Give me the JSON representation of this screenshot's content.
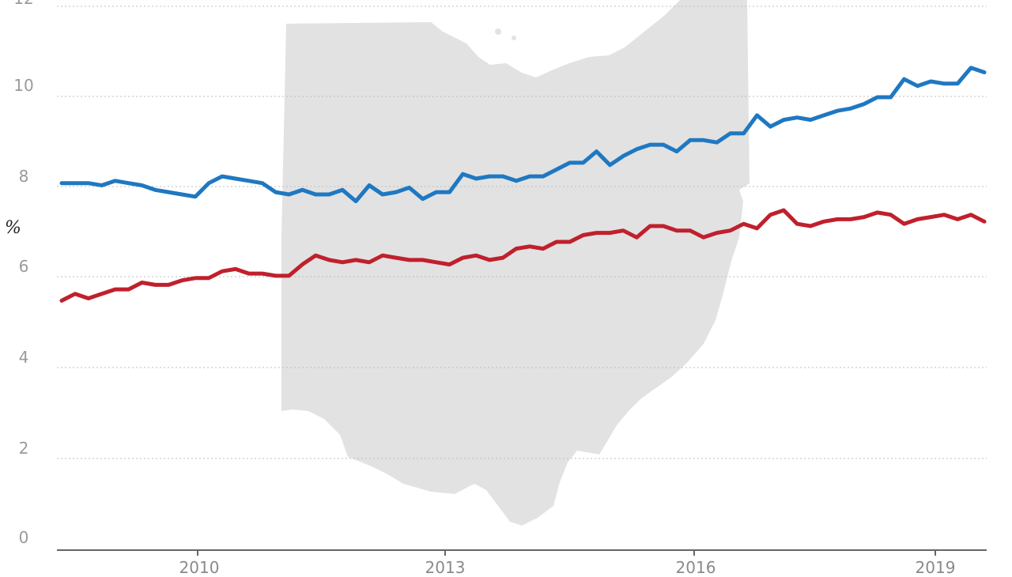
{
  "chart_data": {
    "type": "line",
    "title": "",
    "xlabel": "",
    "ylabel": "%",
    "ylim": [
      0,
      12
    ],
    "y_ticks": [
      "0",
      "2",
      "4",
      "6",
      "8",
      "10",
      "12"
    ],
    "x_tick_labels": [
      "2010",
      "2013",
      "2016",
      "2019"
    ],
    "grid": "horizontal dotted",
    "legend": "none",
    "background_shape": "Ohio state outline (light gray)",
    "series": [
      {
        "name": "blue series",
        "color": "#1f78c1",
        "values": [
          8.1,
          8.1,
          8.1,
          8.05,
          8.15,
          8.1,
          8.05,
          7.95,
          7.9,
          7.85,
          7.8,
          8.1,
          8.25,
          8.2,
          8.15,
          8.1,
          7.9,
          7.85,
          7.95,
          7.85,
          7.85,
          7.95,
          7.7,
          8.05,
          7.85,
          7.9,
          8.0,
          7.75,
          7.9,
          7.9,
          8.3,
          8.2,
          8.25,
          8.25,
          8.15,
          8.25,
          8.25,
          8.4,
          8.55,
          8.55,
          8.8,
          8.5,
          8.7,
          8.85,
          8.95,
          8.95,
          8.8,
          9.05,
          9.05,
          9.0,
          9.2,
          9.2,
          9.6,
          9.35,
          9.5,
          9.55,
          9.5,
          9.6,
          9.7,
          9.75,
          9.85,
          10.0,
          10.0,
          10.4,
          10.25,
          10.35,
          10.3,
          10.3,
          10.65,
          10.55
        ]
      },
      {
        "name": "red series",
        "color": "#c0202c",
        "values": [
          5.5,
          5.65,
          5.55,
          5.65,
          5.75,
          5.75,
          5.9,
          5.85,
          5.85,
          5.95,
          6.0,
          6.0,
          6.15,
          6.2,
          6.1,
          6.1,
          6.05,
          6.05,
          6.3,
          6.5,
          6.4,
          6.35,
          6.4,
          6.35,
          6.5,
          6.45,
          6.4,
          6.4,
          6.35,
          6.3,
          6.45,
          6.5,
          6.4,
          6.45,
          6.65,
          6.7,
          6.65,
          6.8,
          6.8,
          6.95,
          7.0,
          7.0,
          7.05,
          6.9,
          7.15,
          7.15,
          7.05,
          7.05,
          6.9,
          7.0,
          7.05,
          7.2,
          7.1,
          7.4,
          7.5,
          7.2,
          7.15,
          7.25,
          7.3,
          7.3,
          7.35,
          7.45,
          7.4,
          7.2,
          7.3,
          7.35,
          7.4,
          7.3,
          7.4,
          7.25
        ]
      }
    ]
  },
  "axes": {
    "y_label": "%",
    "x_labels": [
      "2010",
      "2013",
      "2016",
      "2019"
    ]
  }
}
